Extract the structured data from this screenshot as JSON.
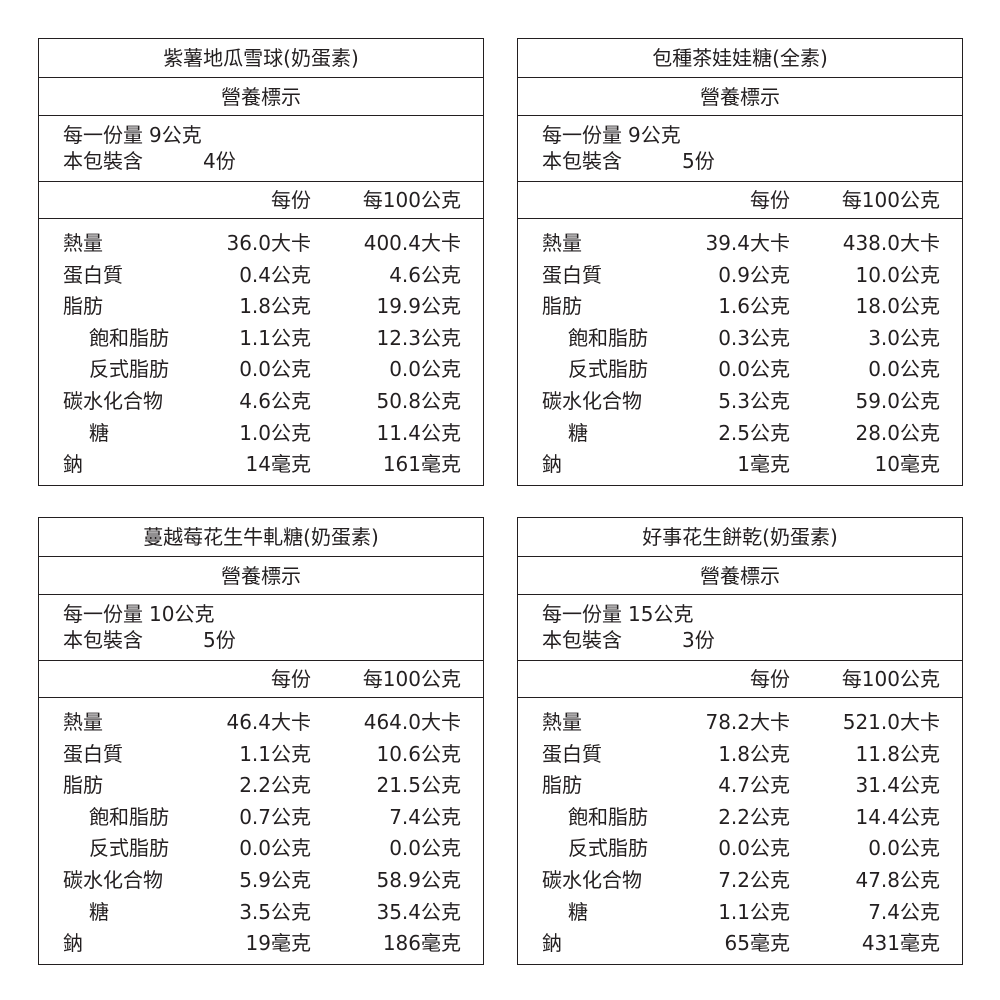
{
  "panels": [
    {
      "title": "紫薯地瓜雪球(奶蛋素)",
      "subtitle": "營養標示",
      "serving_size_label": "每一份量",
      "serving_size": "9公克",
      "servings_label": "本包裝含",
      "servings": "4份",
      "col_per_serving": "每份",
      "col_per_100g": "每100公克",
      "rows": [
        {
          "label": "熱量",
          "per_serving": "36.0大卡",
          "per_100g": "400.4大卡",
          "indent": false
        },
        {
          "label": "蛋白質",
          "per_serving": "0.4公克",
          "per_100g": "4.6公克",
          "indent": false
        },
        {
          "label": "脂肪",
          "per_serving": "1.8公克",
          "per_100g": "19.9公克",
          "indent": false
        },
        {
          "label": "飽和脂肪",
          "per_serving": "1.1公克",
          "per_100g": "12.3公克",
          "indent": true
        },
        {
          "label": "反式脂肪",
          "per_serving": "0.0公克",
          "per_100g": "0.0公克",
          "indent": true
        },
        {
          "label": "碳水化合物",
          "per_serving": "4.6公克",
          "per_100g": "50.8公克",
          "indent": false
        },
        {
          "label": "糖",
          "per_serving": "1.0公克",
          "per_100g": "11.4公克",
          "indent": true
        },
        {
          "label": "鈉",
          "per_serving": "14毫克",
          "per_100g": "161毫克",
          "indent": false
        }
      ]
    },
    {
      "title": "包種茶娃娃糖(全素)",
      "subtitle": "營養標示",
      "serving_size_label": "每一份量",
      "serving_size": "9公克",
      "servings_label": "本包裝含",
      "servings": "5份",
      "col_per_serving": "每份",
      "col_per_100g": "每100公克",
      "rows": [
        {
          "label": "熱量",
          "per_serving": "39.4大卡",
          "per_100g": "438.0大卡",
          "indent": false
        },
        {
          "label": "蛋白質",
          "per_serving": "0.9公克",
          "per_100g": "10.0公克",
          "indent": false
        },
        {
          "label": "脂肪",
          "per_serving": "1.6公克",
          "per_100g": "18.0公克",
          "indent": false
        },
        {
          "label": "飽和脂肪",
          "per_serving": "0.3公克",
          "per_100g": "3.0公克",
          "indent": true
        },
        {
          "label": "反式脂肪",
          "per_serving": "0.0公克",
          "per_100g": "0.0公克",
          "indent": true
        },
        {
          "label": "碳水化合物",
          "per_serving": "5.3公克",
          "per_100g": "59.0公克",
          "indent": false
        },
        {
          "label": "糖",
          "per_serving": "2.5公克",
          "per_100g": "28.0公克",
          "indent": true
        },
        {
          "label": "鈉",
          "per_serving": "1毫克",
          "per_100g": "10毫克",
          "indent": false
        }
      ]
    },
    {
      "title": "蔓越莓花生牛軋糖(奶蛋素)",
      "subtitle": "營養標示",
      "serving_size_label": "每一份量",
      "serving_size": "10公克",
      "servings_label": "本包裝含",
      "servings": "5份",
      "col_per_serving": "每份",
      "col_per_100g": "每100公克",
      "rows": [
        {
          "label": "熱量",
          "per_serving": "46.4大卡",
          "per_100g": "464.0大卡",
          "indent": false
        },
        {
          "label": "蛋白質",
          "per_serving": "1.1公克",
          "per_100g": "10.6公克",
          "indent": false
        },
        {
          "label": "脂肪",
          "per_serving": "2.2公克",
          "per_100g": "21.5公克",
          "indent": false
        },
        {
          "label": "飽和脂肪",
          "per_serving": "0.7公克",
          "per_100g": "7.4公克",
          "indent": true
        },
        {
          "label": "反式脂肪",
          "per_serving": "0.0公克",
          "per_100g": "0.0公克",
          "indent": true
        },
        {
          "label": "碳水化合物",
          "per_serving": "5.9公克",
          "per_100g": "58.9公克",
          "indent": false
        },
        {
          "label": "糖",
          "per_serving": "3.5公克",
          "per_100g": "35.4公克",
          "indent": true
        },
        {
          "label": "鈉",
          "per_serving": "19毫克",
          "per_100g": "186毫克",
          "indent": false
        }
      ]
    },
    {
      "title": "好事花生餅乾(奶蛋素)",
      "subtitle": "營養標示",
      "serving_size_label": "每一份量",
      "serving_size": "15公克",
      "servings_label": "本包裝含",
      "servings": "3份",
      "col_per_serving": "每份",
      "col_per_100g": "每100公克",
      "rows": [
        {
          "label": "熱量",
          "per_serving": "78.2大卡",
          "per_100g": "521.0大卡",
          "indent": false
        },
        {
          "label": "蛋白質",
          "per_serving": "1.8公克",
          "per_100g": "11.8公克",
          "indent": false
        },
        {
          "label": "脂肪",
          "per_serving": "4.7公克",
          "per_100g": "31.4公克",
          "indent": false
        },
        {
          "label": "飽和脂肪",
          "per_serving": "2.2公克",
          "per_100g": "14.4公克",
          "indent": true
        },
        {
          "label": "反式脂肪",
          "per_serving": "0.0公克",
          "per_100g": "0.0公克",
          "indent": true
        },
        {
          "label": "碳水化合物",
          "per_serving": "7.2公克",
          "per_100g": "47.8公克",
          "indent": false
        },
        {
          "label": "糖",
          "per_serving": "1.1公克",
          "per_100g": "7.4公克",
          "indent": true
        },
        {
          "label": "鈉",
          "per_serving": "65毫克",
          "per_100g": "431毫克",
          "indent": false
        }
      ]
    }
  ]
}
